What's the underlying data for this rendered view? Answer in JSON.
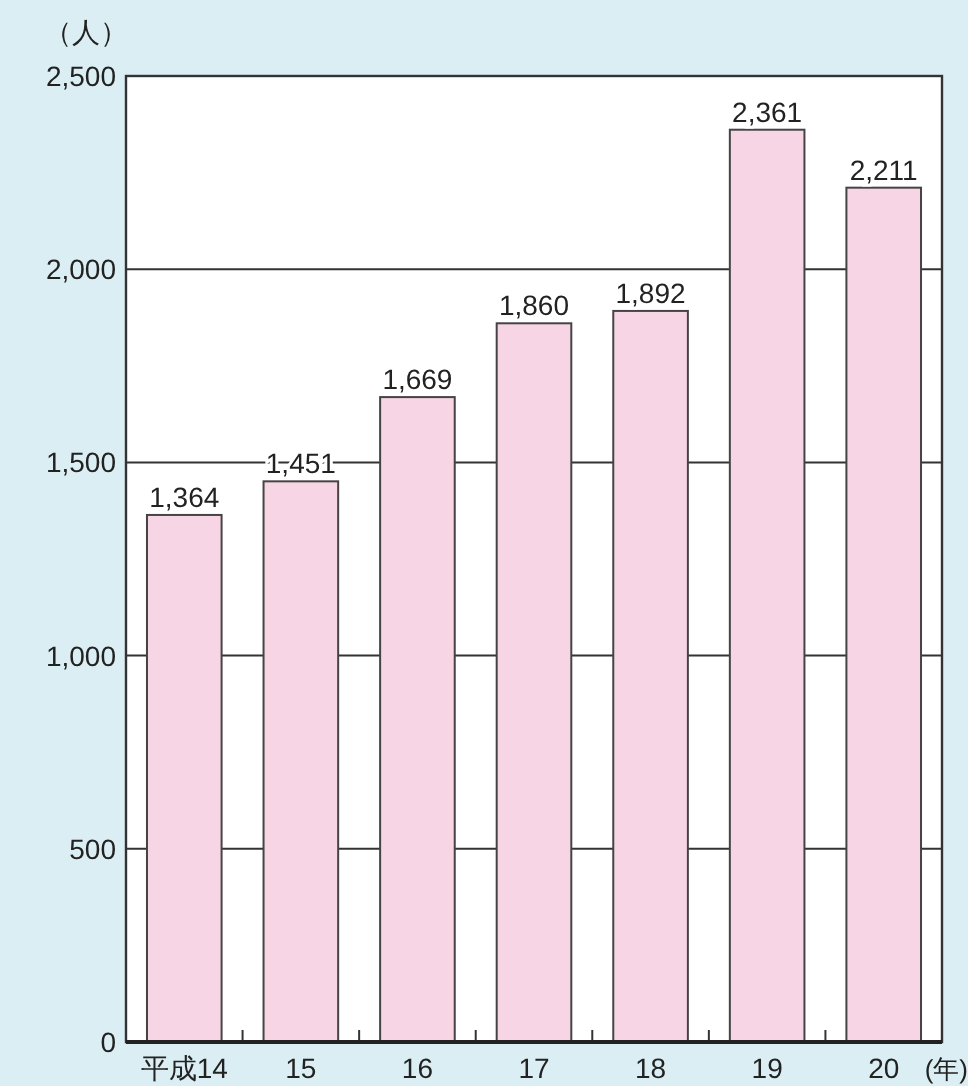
{
  "chart_data": {
    "type": "bar",
    "ylabel": "（人）",
    "xlabel": "(年)",
    "categories": [
      "平成14",
      "15",
      "16",
      "17",
      "18",
      "19",
      "20"
    ],
    "values": [
      1364,
      1451,
      1669,
      1860,
      1892,
      2361,
      2211
    ],
    "value_labels": [
      "1,364",
      "1,451",
      "1,669",
      "1,860",
      "1,892",
      "2,361",
      "2,211"
    ],
    "color": "#f8d5e5",
    "ylim": [
      0,
      2500
    ],
    "yticks": [
      {
        "value": 0,
        "label": "0"
      },
      {
        "value": 500,
        "label": "500"
      },
      {
        "value": 1000,
        "label": "1,000"
      },
      {
        "value": 1500,
        "label": "1,500"
      },
      {
        "value": 2000,
        "label": "2,000"
      },
      {
        "value": 2500,
        "label": "2,500"
      }
    ],
    "grid": "y"
  }
}
